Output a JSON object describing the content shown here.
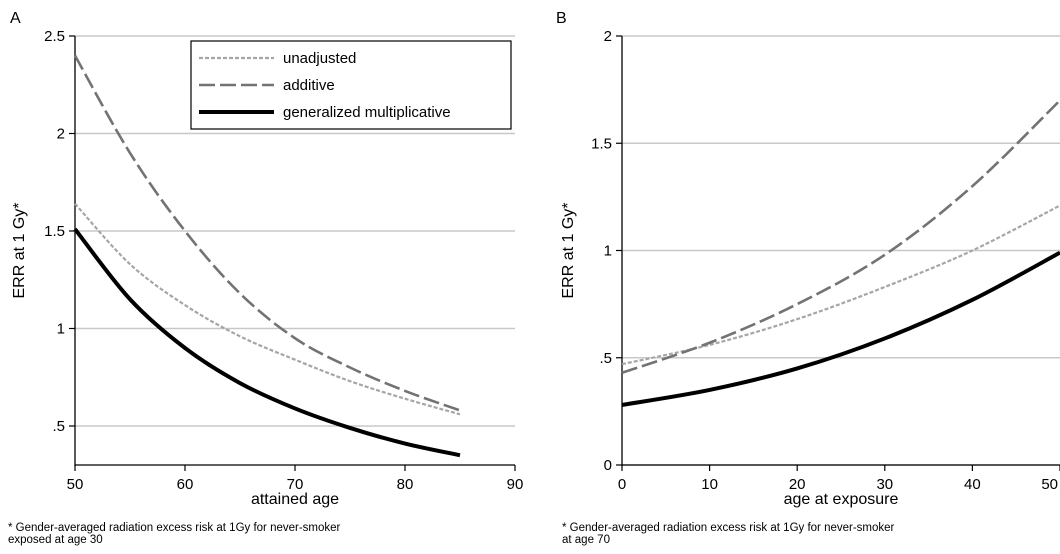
{
  "chart_data": [
    {
      "panel": "A",
      "type": "line",
      "xlabel": "attained age",
      "ylabel": "ERR at 1 Gy*",
      "xlim": [
        50,
        90
      ],
      "ylim": [
        0.3,
        2.5
      ],
      "xticks": [
        "50",
        "60",
        "70",
        "80",
        "90"
      ],
      "xtick_values": [
        50,
        60,
        70,
        80,
        90
      ],
      "yticks": [
        ".5",
        "1",
        "1.5",
        "2",
        "2.5"
      ],
      "ytick_values": [
        0.5,
        1,
        1.5,
        2,
        2.5
      ],
      "grid": "horizontal",
      "legend_position": "top-right",
      "series": [
        {
          "name": "unadjusted",
          "style": "short-dash",
          "color": "#a6a6a6",
          "x": [
            50,
            55,
            60,
            65,
            70,
            75,
            80,
            85
          ],
          "y": [
            1.64,
            1.33,
            1.12,
            0.96,
            0.84,
            0.73,
            0.64,
            0.56
          ]
        },
        {
          "name": "additive",
          "style": "long-dash",
          "color": "#737373",
          "x": [
            50,
            55,
            60,
            65,
            70,
            75,
            80,
            85
          ],
          "y": [
            2.4,
            1.9,
            1.5,
            1.18,
            0.95,
            0.8,
            0.68,
            0.58
          ]
        },
        {
          "name": "generalized multiplicative",
          "style": "solid",
          "color": "#000000",
          "x": [
            50,
            55,
            60,
            65,
            70,
            75,
            80,
            85
          ],
          "y": [
            1.51,
            1.15,
            0.9,
            0.72,
            0.59,
            0.49,
            0.41,
            0.35
          ]
        }
      ],
      "footnote": "* Gender-averaged radiation excess risk at 1Gy for never-smoker\n   exposed at age 30"
    },
    {
      "panel": "B",
      "type": "line",
      "xlabel": "age at exposure",
      "ylabel": "ERR at 1 Gy*",
      "xlim": [
        0,
        50
      ],
      "ylim": [
        0,
        2
      ],
      "xticks": [
        "0",
        "10",
        "20",
        "30",
        "40",
        "50"
      ],
      "xtick_values": [
        0,
        10,
        20,
        30,
        40,
        50
      ],
      "yticks": [
        "0",
        ".5",
        "1",
        "1.5",
        "2"
      ],
      "ytick_values": [
        0,
        0.5,
        1,
        1.5,
        2
      ],
      "grid": "horizontal",
      "series": [
        {
          "name": "unadjusted",
          "style": "short-dash",
          "color": "#a6a6a6",
          "x": [
            0,
            10,
            20,
            30,
            40,
            50
          ],
          "y": [
            0.47,
            0.56,
            0.68,
            0.83,
            1.0,
            1.21
          ]
        },
        {
          "name": "additive",
          "style": "long-dash",
          "color": "#737373",
          "x": [
            0,
            10,
            20,
            30,
            40,
            50
          ],
          "y": [
            0.43,
            0.57,
            0.75,
            0.98,
            1.3,
            1.7
          ]
        },
        {
          "name": "generalized multiplicative",
          "style": "solid",
          "color": "#000000",
          "x": [
            0,
            10,
            20,
            30,
            40,
            50
          ],
          "y": [
            0.28,
            0.35,
            0.45,
            0.59,
            0.77,
            0.99
          ]
        }
      ],
      "footnote": "* Gender-averaged radiation excess risk at 1Gy for never-smoker\n   at age 70"
    }
  ]
}
